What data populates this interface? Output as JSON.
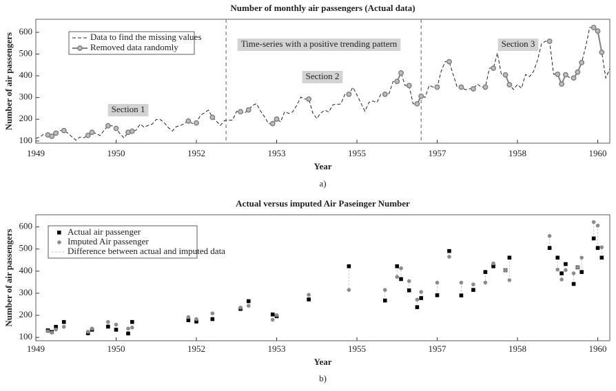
{
  "chart_data": [
    {
      "type": "line",
      "title": "Number of monthly air passengers (Actual data)",
      "panel_label": "a)",
      "xlabel": "Year",
      "ylabel": "Number of air passengers",
      "xlim": [
        1949,
        1960.917
      ],
      "ylim": [
        90,
        660
      ],
      "xticks": [
        1949,
        {
          "value": 1950.667,
          "label": "1950"
        },
        {
          "value": 1952.333,
          "label": "1952"
        },
        {
          "value": 1954,
          "label": "1953"
        },
        {
          "value": 1955.667,
          "label": "1955"
        },
        {
          "value": 1957.333,
          "label": "1957"
        },
        {
          "value": 1959,
          "label": "1958"
        },
        {
          "value": 1960.667,
          "label": "1960"
        }
      ],
      "yticks": [
        100,
        200,
        300,
        400,
        500,
        600
      ],
      "section_bounds": [
        1952.95,
        1957.0
      ],
      "annotations": [
        "Section 1",
        "Time-series with a positive trending pattern",
        "Section 2",
        "Section 3"
      ],
      "x": [
        1949,
        1949.083,
        1949.167,
        1949.25,
        1949.333,
        1949.417,
        1949.5,
        1949.583,
        1949.667,
        1949.75,
        1949.833,
        1949.917,
        1950,
        1950.083,
        1950.167,
        1950.25,
        1950.333,
        1950.417,
        1950.5,
        1950.583,
        1950.667,
        1950.75,
        1950.833,
        1950.917,
        1951,
        1951.083,
        1951.167,
        1951.25,
        1951.333,
        1951.417,
        1951.5,
        1951.583,
        1951.667,
        1951.75,
        1951.833,
        1951.917,
        1952,
        1952.083,
        1952.167,
        1952.25,
        1952.333,
        1952.417,
        1952.5,
        1952.583,
        1952.667,
        1952.75,
        1952.833,
        1952.917,
        1953,
        1953.083,
        1953.167,
        1953.25,
        1953.333,
        1953.417,
        1953.5,
        1953.583,
        1953.667,
        1953.75,
        1953.833,
        1953.917,
        1954,
        1954.083,
        1954.167,
        1954.25,
        1954.333,
        1954.417,
        1954.5,
        1954.583,
        1954.667,
        1954.75,
        1954.833,
        1954.917,
        1955,
        1955.083,
        1955.167,
        1955.25,
        1955.333,
        1955.417,
        1955.5,
        1955.583,
        1955.667,
        1955.75,
        1955.833,
        1955.917,
        1956,
        1956.083,
        1956.167,
        1956.25,
        1956.333,
        1956.417,
        1956.5,
        1956.583,
        1956.667,
        1956.75,
        1956.833,
        1956.917,
        1957,
        1957.083,
        1957.167,
        1957.25,
        1957.333,
        1957.417,
        1957.5,
        1957.583,
        1957.667,
        1957.75,
        1957.833,
        1957.917,
        1958,
        1958.083,
        1958.167,
        1958.25,
        1958.333,
        1958.417,
        1958.5,
        1958.583,
        1958.667,
        1958.75,
        1958.833,
        1958.917,
        1959,
        1959.083,
        1959.167,
        1959.25,
        1959.333,
        1959.417,
        1959.5,
        1959.583,
        1959.667,
        1959.75,
        1959.833,
        1959.917,
        1960,
        1960.083,
        1960.167,
        1960.25,
        1960.333,
        1960.417,
        1960.5,
        1960.583,
        1960.667,
        1960.75,
        1960.833,
        1960.917
      ],
      "series": [
        {
          "name": "Data to find the missing values",
          "color": "#222222",
          "style": "dashed",
          "values": [
            112,
            118,
            132,
            128,
            122,
            136,
            148,
            148,
            136,
            119,
            104,
            118,
            115,
            126,
            140,
            135,
            125,
            149,
            170,
            170,
            158,
            133,
            114,
            140,
            145,
            150,
            178,
            163,
            172,
            178,
            199,
            199,
            184,
            162,
            146,
            166,
            171,
            180,
            192,
            181,
            183,
            218,
            230,
            242,
            209,
            191,
            172,
            194,
            196,
            196,
            236,
            235,
            229,
            243,
            264,
            272,
            237,
            211,
            180,
            180,
            201,
            188,
            235,
            227,
            234,
            264,
            302,
            293,
            293,
            229,
            203,
            229,
            242,
            233,
            267,
            269,
            270,
            315,
            315,
            347,
            312,
            274,
            237,
            278,
            284,
            277,
            317,
            315,
            318,
            374,
            374,
            413,
            355,
            355,
            271,
            271,
            306,
            301,
            356,
            348,
            348,
            422,
            465,
            465,
            404,
            347,
            348,
            336,
            340,
            340,
            362,
            348,
            348,
            435,
            435,
            505,
            404,
            404,
            359,
            337,
            360,
            342,
            406,
            396,
            420,
            472,
            548,
            559,
            559,
            407,
            407,
            362,
            405,
            391,
            390,
            417,
            461,
            535,
            622,
            622,
            606,
            508,
            390,
            432
          ]
        },
        {
          "name": "Removed data randomly",
          "color": "#808080",
          "style": "solid-marker",
          "values": [
            null,
            null,
            null,
            128,
            122,
            136,
            null,
            148,
            null,
            null,
            null,
            null,
            null,
            126,
            140,
            null,
            null,
            null,
            170,
            null,
            158,
            null,
            null,
            140,
            145,
            null,
            null,
            null,
            null,
            null,
            null,
            null,
            null,
            null,
            null,
            null,
            null,
            null,
            192,
            null,
            183,
            null,
            null,
            null,
            209,
            null,
            null,
            null,
            null,
            null,
            null,
            235,
            null,
            243,
            null,
            null,
            null,
            null,
            null,
            180,
            201,
            null,
            null,
            null,
            null,
            null,
            null,
            null,
            293,
            null,
            null,
            null,
            null,
            null,
            null,
            null,
            null,
            null,
            315,
            null,
            null,
            null,
            null,
            null,
            null,
            null,
            null,
            315,
            null,
            null,
            374,
            413,
            null,
            355,
            null,
            271,
            306,
            null,
            null,
            null,
            348,
            null,
            null,
            465,
            null,
            null,
            348,
            null,
            null,
            340,
            null,
            null,
            348,
            null,
            435,
            null,
            null,
            404,
            359,
            null,
            null,
            null,
            null,
            null,
            null,
            null,
            null,
            null,
            559,
            null,
            407,
            362,
            405,
            null,
            390,
            417,
            461,
            null,
            null,
            622,
            606,
            508,
            null,
            null
          ]
        }
      ]
    },
    {
      "type": "scatter",
      "title": "Actual versus imputed Air Paseinger Number",
      "panel_label": "b)",
      "xlabel": "Year",
      "ylabel": "Number of air passengers",
      "xlim": [
        1949,
        1960.917
      ],
      "ylim": [
        85,
        655
      ],
      "xticks": [
        1949,
        {
          "value": 1950.667,
          "label": "1950"
        },
        {
          "value": 1952.333,
          "label": "1952"
        },
        {
          "value": 1954,
          "label": "1953"
        },
        {
          "value": 1955.667,
          "label": "1955"
        },
        {
          "value": 1957.333,
          "label": "1957"
        },
        {
          "value": 1959,
          "label": "1958"
        },
        {
          "value": 1960.667,
          "label": "1960"
        }
      ],
      "yticks": [
        100,
        200,
        300,
        400,
        500,
        600
      ],
      "x": [
        1949.25,
        1949.333,
        1949.417,
        1949.583,
        1950.083,
        1950.167,
        1950.5,
        1950.667,
        1950.917,
        1951,
        1952.167,
        1952.333,
        1952.667,
        1953.25,
        1953.417,
        1953.917,
        1954,
        1954.667,
        1955.5,
        1956.25,
        1956.5,
        1956.583,
        1956.75,
        1956.917,
        1957,
        1957.333,
        1957.583,
        1957.833,
        1958.083,
        1958.333,
        1958.5,
        1958.75,
        1958.833,
        1959.667,
        1959.833,
        1959.917,
        1960,
        1960.167,
        1960.25,
        1960.333,
        1960.583,
        1960.667,
        1960.75
      ],
      "series": [
        {
          "name": "Actual air passenger",
          "color": "#000000",
          "values": [
            132,
            125,
            148,
            170,
            119,
            135,
            149,
            135,
            118,
            170,
            178,
            172,
            183,
            229,
            264,
            204,
            196,
            272,
            422,
            267,
            422,
            364,
            313,
            237,
            278,
            291,
            491,
            290,
            315,
            396,
            422,
            404,
            461,
            505,
            461,
            390,
            432,
            342,
            417,
            396,
            548,
            505,
            461
          ]
        },
        {
          "name": "Imputed Air passenger",
          "color": "#8c8c8c",
          "values": [
            128,
            122,
            136,
            148,
            126,
            140,
            170,
            158,
            140,
            145,
            192,
            183,
            209,
            235,
            243,
            180,
            201,
            293,
            315,
            315,
            374,
            413,
            355,
            271,
            306,
            348,
            465,
            348,
            340,
            348,
            435,
            404,
            359,
            559,
            407,
            362,
            405,
            390,
            417,
            461,
            622,
            606,
            508
          ]
        }
      ],
      "difference": {
        "name": "Difference between actual and imputed data",
        "color": "#c8c8c8"
      }
    }
  ]
}
